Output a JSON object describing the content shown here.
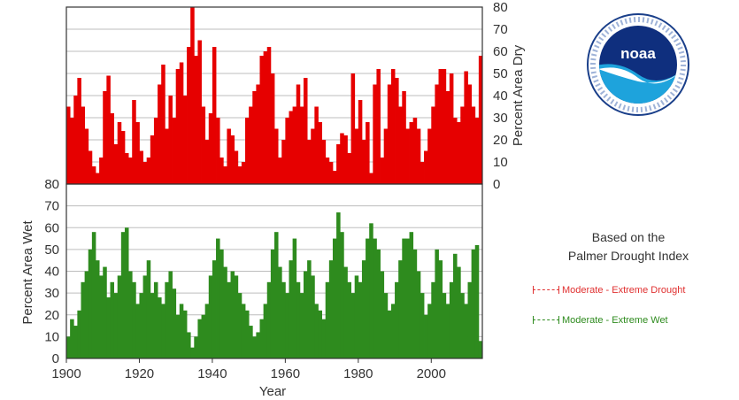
{
  "chart_data": [
    {
      "type": "bar",
      "panel": "top",
      "series": [
        {
          "name": "Moderate - Extreme Drought",
          "color": "#e60000"
        }
      ],
      "ylabel": "Percent Area Dry",
      "ylim": [
        0,
        80
      ],
      "yticks": [
        "0",
        "10",
        "20",
        "30",
        "40",
        "50",
        "60",
        "70",
        "80"
      ],
      "y_axis_side": "right",
      "grid": true,
      "x": [
        1900,
        1901,
        1902,
        1903,
        1904,
        1905,
        1906,
        1907,
        1908,
        1909,
        1910,
        1911,
        1912,
        1913,
        1914,
        1915,
        1916,
        1917,
        1918,
        1919,
        1920,
        1921,
        1922,
        1923,
        1924,
        1925,
        1926,
        1927,
        1928,
        1929,
        1930,
        1931,
        1932,
        1933,
        1934,
        1935,
        1936,
        1937,
        1938,
        1939,
        1940,
        1941,
        1942,
        1943,
        1944,
        1945,
        1946,
        1947,
        1948,
        1949,
        1950,
        1951,
        1952,
        1953,
        1954,
        1955,
        1956,
        1957,
        1958,
        1959,
        1960,
        1961,
        1962,
        1963,
        1964,
        1965,
        1966,
        1967,
        1968,
        1969,
        1970,
        1971,
        1972,
        1973,
        1974,
        1975,
        1976,
        1977,
        1978,
        1979,
        1980,
        1981,
        1982,
        1983,
        1984,
        1985,
        1986,
        1987,
        1988,
        1989,
        1990,
        1991,
        1992,
        1993,
        1994,
        1995,
        1996,
        1997,
        1998,
        1999,
        2000,
        2001,
        2002,
        2003,
        2004,
        2005,
        2006,
        2007,
        2008,
        2009,
        2010,
        2011,
        2012,
        2013
      ],
      "values": [
        35,
        30,
        40,
        48,
        35,
        25,
        15,
        8,
        5,
        12,
        42,
        49,
        32,
        18,
        28,
        24,
        14,
        12,
        38,
        28,
        15,
        10,
        12,
        22,
        30,
        45,
        54,
        25,
        40,
        30,
        52,
        55,
        40,
        62,
        80,
        58,
        65,
        35,
        20,
        32,
        62,
        30,
        12,
        8,
        25,
        22,
        15,
        8,
        10,
        30,
        35,
        42,
        45,
        58,
        60,
        62,
        50,
        25,
        12,
        20,
        30,
        33,
        35,
        45,
        35,
        48,
        20,
        25,
        35,
        28,
        20,
        12,
        10,
        6,
        18,
        23,
        22,
        14,
        50,
        25,
        38,
        20,
        28,
        5,
        45,
        52,
        12,
        25,
        45,
        52,
        48,
        35,
        42,
        25,
        28,
        30,
        25,
        10,
        15,
        25,
        35,
        45,
        52,
        52,
        42,
        50,
        30,
        28,
        35,
        51,
        45,
        35,
        30,
        58
      ]
    },
    {
      "type": "bar",
      "panel": "bottom",
      "series": [
        {
          "name": "Moderate - Extreme Wet",
          "color": "#2e8b1e"
        }
      ],
      "xlabel": "Year",
      "ylabel": "Percent Area Wet",
      "ylim": [
        0,
        80
      ],
      "yticks": [
        "0",
        "10",
        "20",
        "30",
        "40",
        "50",
        "60",
        "70",
        "80"
      ],
      "y_axis_side": "left",
      "xticks": [
        "1900",
        "1920",
        "1940",
        "1960",
        "1980",
        "2000"
      ],
      "xlim": [
        1900,
        2014
      ],
      "grid": true,
      "x": [
        1900,
        1901,
        1902,
        1903,
        1904,
        1905,
        1906,
        1907,
        1908,
        1909,
        1910,
        1911,
        1912,
        1913,
        1914,
        1915,
        1916,
        1917,
        1918,
        1919,
        1920,
        1921,
        1922,
        1923,
        1924,
        1925,
        1926,
        1927,
        1928,
        1929,
        1930,
        1931,
        1932,
        1933,
        1934,
        1935,
        1936,
        1937,
        1938,
        1939,
        1940,
        1941,
        1942,
        1943,
        1944,
        1945,
        1946,
        1947,
        1948,
        1949,
        1950,
        1951,
        1952,
        1953,
        1954,
        1955,
        1956,
        1957,
        1958,
        1959,
        1960,
        1961,
        1962,
        1963,
        1964,
        1965,
        1966,
        1967,
        1968,
        1969,
        1970,
        1971,
        1972,
        1973,
        1974,
        1975,
        1976,
        1977,
        1978,
        1979,
        1980,
        1981,
        1982,
        1983,
        1984,
        1985,
        1986,
        1987,
        1988,
        1989,
        1990,
        1991,
        1992,
        1993,
        1994,
        1995,
        1996,
        1997,
        1998,
        1999,
        2000,
        2001,
        2002,
        2003,
        2004,
        2005,
        2006,
        2007,
        2008,
        2009,
        2010,
        2011,
        2012,
        2013
      ],
      "values": [
        10,
        18,
        15,
        22,
        35,
        40,
        50,
        58,
        45,
        38,
        42,
        28,
        35,
        30,
        38,
        58,
        60,
        40,
        35,
        25,
        30,
        38,
        45,
        30,
        35,
        28,
        25,
        35,
        40,
        32,
        20,
        25,
        22,
        12,
        5,
        10,
        18,
        20,
        25,
        38,
        45,
        55,
        50,
        42,
        35,
        40,
        38,
        30,
        25,
        22,
        15,
        10,
        12,
        18,
        25,
        35,
        50,
        58,
        42,
        35,
        30,
        45,
        55,
        35,
        30,
        40,
        45,
        38,
        25,
        22,
        18,
        35,
        45,
        55,
        67,
        58,
        42,
        35,
        30,
        38,
        35,
        45,
        55,
        62,
        55,
        50,
        40,
        30,
        22,
        25,
        35,
        45,
        55,
        55,
        58,
        50,
        40,
        30,
        20,
        25,
        35,
        50,
        45,
        30,
        25,
        35,
        48,
        42,
        30,
        25,
        35,
        50,
        52,
        8
      ]
    }
  ],
  "legend": {
    "title_line1": "Based on the",
    "title_line2": "Palmer Drought Index",
    "drought_label": "Moderate - Extreme Drought",
    "wet_label": "Moderate - Extreme Wet",
    "drought_color": "#e03030",
    "wet_color": "#2e8b1e"
  },
  "logo": {
    "text": "noaa",
    "icon": "noaa-logo-icon"
  }
}
